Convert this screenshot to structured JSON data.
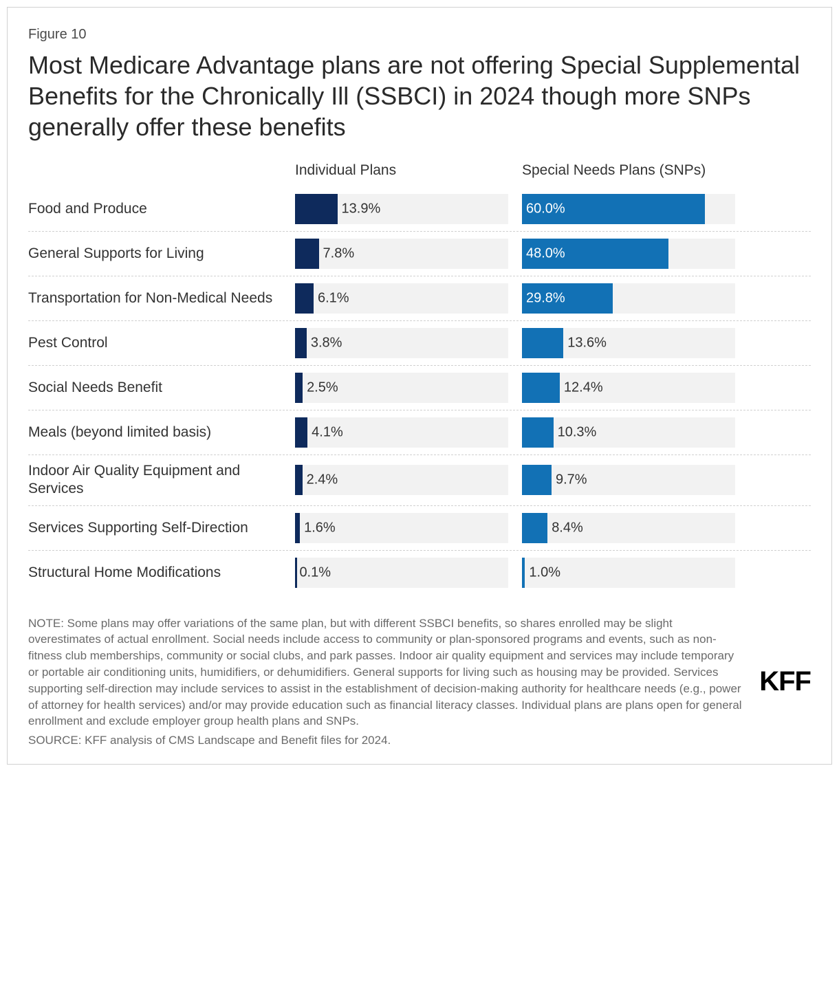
{
  "figure_number": "Figure 10",
  "title": "Most Medicare Advantage plans are not offering Special Supplemental Benefits for the Chronically Ill (SSBCI) in 2024 though more SNPs generally offer these benefits",
  "chart": {
    "type": "bar",
    "scale_max_pct": 70,
    "bar_track_color": "#f2f2f2",
    "columns": [
      {
        "key": "individual",
        "header": "Individual Plans",
        "bar_color": "#0e2a5c"
      },
      {
        "key": "snps",
        "header": "Special Needs Plans (SNPs)",
        "bar_color": "#1271b5"
      }
    ],
    "rows": [
      {
        "label": "Food and Produce",
        "individual": 13.9,
        "snps": 60.0
      },
      {
        "label": "General Supports for Living",
        "individual": 7.8,
        "snps": 48.0
      },
      {
        "label": "Transportation for Non-Medical Needs",
        "individual": 6.1,
        "snps": 29.8
      },
      {
        "label": "Pest Control",
        "individual": 3.8,
        "snps": 13.6
      },
      {
        "label": "Social Needs Benefit",
        "individual": 2.5,
        "snps": 12.4
      },
      {
        "label": "Meals (beyond limited basis)",
        "individual": 4.1,
        "snps": 10.3
      },
      {
        "label": "Indoor Air Quality Equipment and Services",
        "individual": 2.4,
        "snps": 9.7
      },
      {
        "label": "Services Supporting Self-Direction",
        "individual": 1.6,
        "snps": 8.4
      },
      {
        "label": "Structural Home Modifications",
        "individual": 0.1,
        "snps": 1.0
      }
    ],
    "label_inside_color": "#ffffff",
    "label_outside_color": "#333333",
    "label_inside_threshold_pct": 25,
    "label_fontsize": 20,
    "category_fontsize": 21,
    "header_fontsize": 21
  },
  "note": "NOTE: Some plans may offer variations of the same plan, but with different SSBCI benefits, so shares enrolled may be slight overestimates of actual enrollment. Social needs include access to community or plan-sponsored programs and events, such as non-fitness club memberships, community or social clubs, and park passes. Indoor air quality equipment and services may include temporary or portable air conditioning units, humidifiers, or dehumidifiers. General supports for living such as housing may be provided. Services supporting self-direction may include services to assist in the establishment of decision-making authority for healthcare needs (e.g., power of attorney for health services) and/or may provide education such as financial literacy classes. Individual plans are plans open for general enrollment and exclude employer group health plans and SNPs.",
  "source": "SOURCE: KFF analysis of CMS Landscape and Benefit files for 2024.",
  "logo_text": "KFF",
  "colors": {
    "border": "#d0d0d0",
    "text_primary": "#333333",
    "text_muted": "#6a6a6a",
    "background": "#ffffff"
  }
}
